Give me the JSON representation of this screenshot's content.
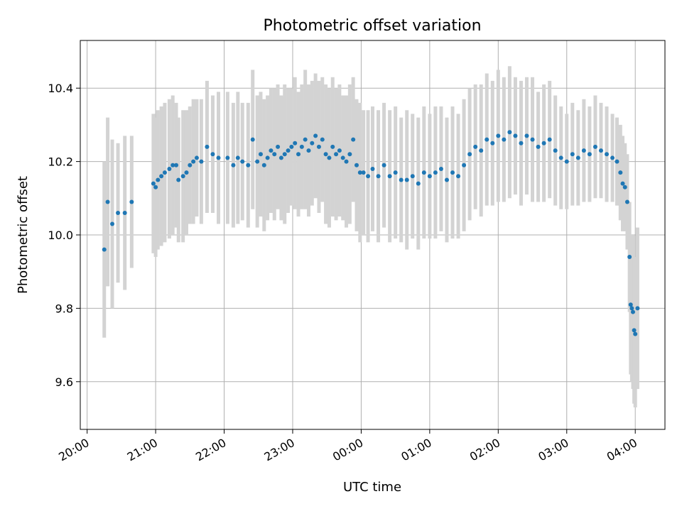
{
  "chart_data": {
    "type": "scatter",
    "title": "Photometric offset variation",
    "xlabel": "UTC time",
    "ylabel": "Photometric offset",
    "grid": true,
    "x_tick_labels": [
      "20:00",
      "21:00",
      "22:00",
      "23:00",
      "00:00",
      "01:00",
      "02:00",
      "03:00",
      "04:00"
    ],
    "y_ticks": [
      9.6,
      9.8,
      10.0,
      10.2,
      10.4
    ],
    "y_tick_labels": [
      "9.6",
      "9.8",
      "10.0",
      "10.2",
      "10.4"
    ],
    "xlim": [
      "19:54",
      "04:26"
    ],
    "ylim": [
      9.47,
      10.53
    ],
    "colors": {
      "points": "#1f77b4",
      "error_bars": "#d3d3d3",
      "grid": "#b0b0b0"
    },
    "series": [
      {
        "x": [
          "20:15",
          "20:18",
          "20:22",
          "20:27",
          "20:33",
          "20:39",
          "20:58",
          "21:00",
          "21:02",
          "21:05",
          "21:08",
          "21:12",
          "21:15",
          "21:18",
          "21:20",
          "21:24",
          "21:27",
          "21:30",
          "21:33",
          "21:36",
          "21:40",
          "21:45",
          "21:50",
          "21:55",
          "22:03",
          "22:08",
          "22:12",
          "22:16",
          "22:21",
          "22:25",
          "22:29",
          "22:32",
          "22:35",
          "22:38",
          "22:41",
          "22:44",
          "22:47",
          "22:50",
          "22:53",
          "22:56",
          "22:59",
          "23:02",
          "23:05",
          "23:08",
          "23:11",
          "23:14",
          "23:17",
          "23:20",
          "23:23",
          "23:26",
          "23:29",
          "23:32",
          "23:35",
          "23:38",
          "23:41",
          "23:44",
          "23:47",
          "23:50",
          "23:53",
          "23:56",
          "23:59",
          "00:02",
          "00:06",
          "00:10",
          "00:15",
          "00:20",
          "00:25",
          "00:30",
          "00:35",
          "00:40",
          "00:45",
          "00:50",
          "00:55",
          "01:00",
          "01:05",
          "01:10",
          "01:15",
          "01:20",
          "01:25",
          "01:30",
          "01:35",
          "01:40",
          "01:45",
          "01:50",
          "01:55",
          "02:00",
          "02:05",
          "02:10",
          "02:15",
          "02:20",
          "02:25",
          "02:30",
          "02:35",
          "02:40",
          "02:45",
          "02:50",
          "02:55",
          "03:00",
          "03:05",
          "03:10",
          "03:15",
          "03:20",
          "03:25",
          "03:30",
          "03:35",
          "03:40",
          "03:44",
          "03:47",
          "03:49",
          "03:51",
          "03:53",
          "03:55",
          "03:56",
          "03:57",
          "03:58",
          "03:59",
          "04:00",
          "04:02"
        ],
        "y": [
          9.96,
          10.09,
          10.03,
          10.06,
          10.06,
          10.09,
          10.14,
          10.13,
          10.15,
          10.16,
          10.17,
          10.18,
          10.19,
          10.19,
          10.15,
          10.16,
          10.17,
          10.19,
          10.2,
          10.21,
          10.2,
          10.24,
          10.22,
          10.21,
          10.21,
          10.19,
          10.21,
          10.2,
          10.19,
          10.26,
          10.2,
          10.22,
          10.19,
          10.21,
          10.23,
          10.22,
          10.24,
          10.21,
          10.22,
          10.23,
          10.24,
          10.25,
          10.22,
          10.24,
          10.26,
          10.23,
          10.25,
          10.27,
          10.24,
          10.26,
          10.22,
          10.21,
          10.24,
          10.22,
          10.23,
          10.21,
          10.2,
          10.22,
          10.26,
          10.19,
          10.17,
          10.17,
          10.16,
          10.18,
          10.16,
          10.19,
          10.16,
          10.17,
          10.15,
          10.15,
          10.16,
          10.14,
          10.17,
          10.16,
          10.17,
          10.18,
          10.15,
          10.17,
          10.16,
          10.19,
          10.22,
          10.24,
          10.23,
          10.26,
          10.25,
          10.27,
          10.26,
          10.28,
          10.27,
          10.25,
          10.27,
          10.26,
          10.24,
          10.25,
          10.26,
          10.23,
          10.21,
          10.2,
          10.22,
          10.21,
          10.23,
          10.22,
          10.24,
          10.23,
          10.22,
          10.21,
          10.2,
          10.17,
          10.14,
          10.13,
          10.09,
          9.94,
          9.81,
          9.8,
          9.79,
          9.74,
          9.73,
          9.8
        ],
        "err": [
          0.24,
          0.23,
          0.23,
          0.19,
          0.21,
          0.18,
          0.19,
          0.19,
          0.19,
          0.19,
          0.19,
          0.19,
          0.19,
          0.17,
          0.17,
          0.18,
          0.17,
          0.16,
          0.17,
          0.16,
          0.17,
          0.18,
          0.16,
          0.18,
          0.18,
          0.17,
          0.18,
          0.16,
          0.17,
          0.19,
          0.18,
          0.17,
          0.18,
          0.17,
          0.17,
          0.18,
          0.17,
          0.17,
          0.19,
          0.17,
          0.16,
          0.18,
          0.17,
          0.17,
          0.19,
          0.18,
          0.17,
          0.17,
          0.18,
          0.17,
          0.19,
          0.19,
          0.19,
          0.18,
          0.18,
          0.17,
          0.18,
          0.19,
          0.17,
          0.18,
          0.19,
          0.17,
          0.18,
          0.17,
          0.18,
          0.17,
          0.18,
          0.18,
          0.17,
          0.19,
          0.17,
          0.18,
          0.18,
          0.17,
          0.18,
          0.17,
          0.17,
          0.18,
          0.17,
          0.18,
          0.18,
          0.17,
          0.18,
          0.18,
          0.17,
          0.18,
          0.17,
          0.18,
          0.16,
          0.17,
          0.16,
          0.17,
          0.15,
          0.16,
          0.16,
          0.15,
          0.14,
          0.13,
          0.14,
          0.13,
          0.14,
          0.13,
          0.14,
          0.13,
          0.13,
          0.12,
          0.12,
          0.13,
          0.13,
          0.12,
          0.13,
          0.15,
          0.19,
          0.2,
          0.21,
          0.2,
          0.2,
          0.22
        ]
      }
    ]
  }
}
